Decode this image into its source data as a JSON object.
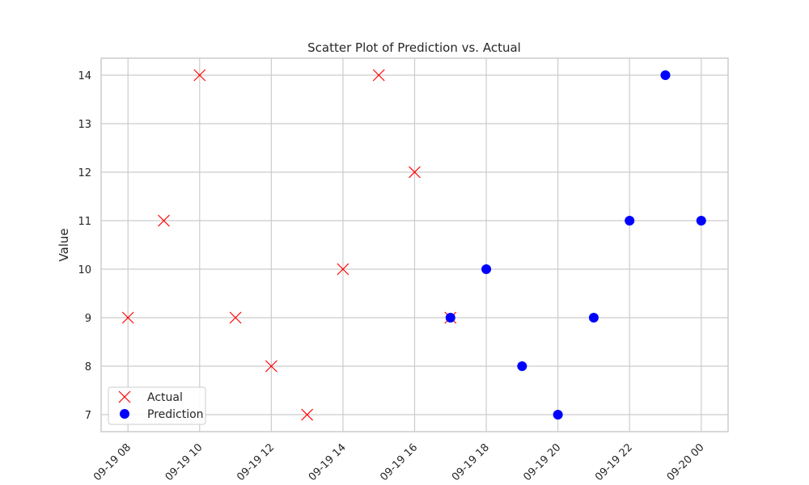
{
  "chart_data": {
    "type": "scatter",
    "title": "Scatter Plot of Prediction vs. Actual",
    "xlabel": "",
    "ylabel": "Value",
    "x_type": "datetime",
    "xlim": [
      "2024-09-19T07:15:00",
      "2024-09-20T00:45:00"
    ],
    "ylim": [
      6.65,
      14.35
    ],
    "x_ticks": [
      {
        "t": "2024-09-19T08:00:00",
        "label": "09-19 08"
      },
      {
        "t": "2024-09-19T10:00:00",
        "label": "09-19 10"
      },
      {
        "t": "2024-09-19T12:00:00",
        "label": "09-19 12"
      },
      {
        "t": "2024-09-19T14:00:00",
        "label": "09-19 14"
      },
      {
        "t": "2024-09-19T16:00:00",
        "label": "09-19 16"
      },
      {
        "t": "2024-09-19T18:00:00",
        "label": "09-19 18"
      },
      {
        "t": "2024-09-19T20:00:00",
        "label": "09-19 20"
      },
      {
        "t": "2024-09-19T22:00:00",
        "label": "09-19 22"
      },
      {
        "t": "2024-09-20T00:00:00",
        "label": "09-20 00"
      }
    ],
    "y_ticks": [
      7,
      8,
      9,
      10,
      11,
      12,
      13,
      14
    ],
    "grid": true,
    "legend_position": "lower-left",
    "series": [
      {
        "name": "Actual",
        "marker": "x",
        "color": "#ff0000",
        "points": [
          {
            "t": "2024-09-19T08:00:00",
            "y": 9
          },
          {
            "t": "2024-09-19T09:00:00",
            "y": 11
          },
          {
            "t": "2024-09-19T10:00:00",
            "y": 14
          },
          {
            "t": "2024-09-19T11:00:00",
            "y": 9
          },
          {
            "t": "2024-09-19T12:00:00",
            "y": 8
          },
          {
            "t": "2024-09-19T13:00:00",
            "y": 7
          },
          {
            "t": "2024-09-19T14:00:00",
            "y": 10
          },
          {
            "t": "2024-09-19T15:00:00",
            "y": 14
          },
          {
            "t": "2024-09-19T16:00:00",
            "y": 12
          },
          {
            "t": "2024-09-19T17:00:00",
            "y": 9
          }
        ]
      },
      {
        "name": "Prediction",
        "marker": "circle",
        "color": "#0000ff",
        "points": [
          {
            "t": "2024-09-19T17:00:00",
            "y": 9
          },
          {
            "t": "2024-09-19T18:00:00",
            "y": 10
          },
          {
            "t": "2024-09-19T19:00:00",
            "y": 8
          },
          {
            "t": "2024-09-19T20:00:00",
            "y": 7
          },
          {
            "t": "2024-09-19T21:00:00",
            "y": 9
          },
          {
            "t": "2024-09-19T22:00:00",
            "y": 11
          },
          {
            "t": "2024-09-19T23:00:00",
            "y": 14
          },
          {
            "t": "2024-09-20T00:00:00",
            "y": 11
          }
        ]
      }
    ]
  }
}
